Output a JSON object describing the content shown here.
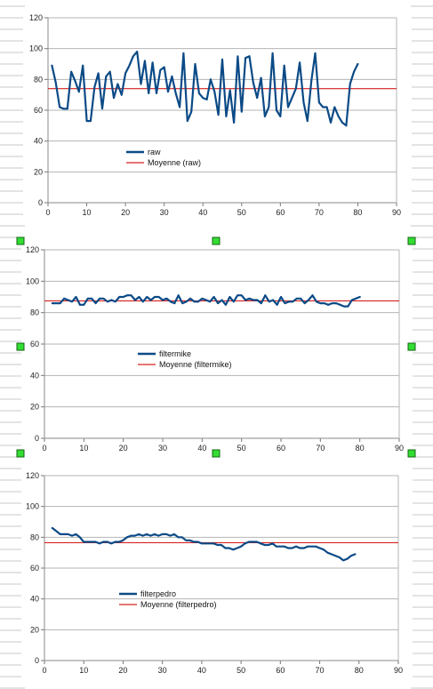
{
  "colors": {
    "series": "#0b4a86",
    "mean": "#d62020",
    "grid": "#b4b4b4",
    "handle_fill": "#33dd33",
    "handle_stroke": "#116611"
  },
  "chart_data": [
    {
      "type": "line",
      "xlim": [
        0,
        90
      ],
      "ylim": [
        0,
        120
      ],
      "x_ticks": [
        0,
        10,
        20,
        30,
        40,
        50,
        60,
        70,
        80,
        90
      ],
      "y_ticks": [
        0,
        20,
        40,
        60,
        80,
        100,
        120
      ],
      "grid": "horizontal",
      "legend_position": "bottom-left",
      "series": [
        {
          "name": "raw",
          "x_start": 1,
          "values": [
            89,
            78,
            62,
            61,
            61,
            85,
            79,
            72,
            89,
            53,
            53,
            75,
            84,
            61,
            82,
            85,
            68,
            77,
            70,
            84,
            89,
            95,
            98,
            77,
            92,
            71,
            91,
            71,
            86,
            88,
            72,
            82,
            71,
            62,
            97,
            53,
            59,
            90,
            71,
            68,
            67,
            80,
            72,
            57,
            93,
            56,
            73,
            52,
            95,
            59,
            94,
            95,
            78,
            68,
            81,
            56,
            62,
            97,
            60,
            56,
            89,
            62,
            68,
            74,
            91,
            65,
            53,
            79,
            97,
            65,
            62,
            62,
            52,
            62,
            56,
            52,
            50,
            77,
            85,
            90
          ]
        },
        {
          "name": "Moyenne (raw)",
          "constant": 74
        }
      ]
    },
    {
      "type": "line",
      "xlim": [
        0,
        90
      ],
      "ylim": [
        0,
        120
      ],
      "x_ticks": [
        0,
        10,
        20,
        30,
        40,
        50,
        60,
        70,
        80,
        90
      ],
      "y_ticks": [
        0,
        20,
        40,
        60,
        80,
        100,
        120
      ],
      "grid": "horizontal",
      "legend_position": "bottom-left",
      "series": [
        {
          "name": "filtermike",
          "x_start": 2,
          "values": [
            86,
            86,
            86,
            89,
            88,
            87,
            90,
            85,
            85,
            89,
            89,
            86,
            89,
            89,
            87,
            88,
            87,
            90,
            90,
            91,
            91,
            88,
            90,
            87,
            90,
            88,
            90,
            90,
            88,
            89,
            87,
            86,
            91,
            86,
            87,
            89,
            87,
            87,
            89,
            88,
            87,
            90,
            86,
            88,
            85,
            90,
            87,
            91,
            91,
            88,
            89,
            88,
            88,
            86,
            91,
            87,
            88,
            85,
            90,
            86,
            87,
            87,
            89,
            89,
            86,
            88,
            91,
            87,
            86,
            86,
            85,
            86,
            86,
            85,
            84,
            84,
            88,
            89,
            90
          ]
        },
        {
          "name": "Moyenne (filtermike)",
          "constant": 87.5
        }
      ]
    },
    {
      "type": "line",
      "xlim": [
        0,
        90
      ],
      "ylim": [
        0,
        120
      ],
      "x_ticks": [
        0,
        10,
        20,
        30,
        40,
        50,
        60,
        70,
        80,
        90
      ],
      "y_ticks": [
        0,
        20,
        40,
        60,
        80,
        100,
        120
      ],
      "grid": "horizontal",
      "legend_position": "bottom-left",
      "series": [
        {
          "name": "filterpedro",
          "x_start": 2,
          "values": [
            86,
            84,
            82,
            82,
            82,
            81,
            82,
            80,
            77,
            77,
            77,
            77,
            76,
            77,
            77,
            76,
            77,
            77,
            78,
            80,
            81,
            81,
            82,
            81,
            82,
            81,
            82,
            81,
            82,
            82,
            81,
            82,
            80,
            80,
            78,
            78,
            77,
            77,
            76,
            76,
            76,
            76,
            75,
            75,
            73,
            73,
            72,
            73,
            74,
            76,
            77,
            77,
            77,
            76,
            75,
            75,
            76,
            74,
            74,
            74,
            73,
            73,
            74,
            73,
            73,
            74,
            74,
            74,
            73,
            72,
            70,
            69,
            68,
            67,
            65,
            66,
            68,
            69
          ]
        },
        {
          "name": "Moyenne (filterpedro)",
          "constant": 76.5
        }
      ]
    }
  ]
}
